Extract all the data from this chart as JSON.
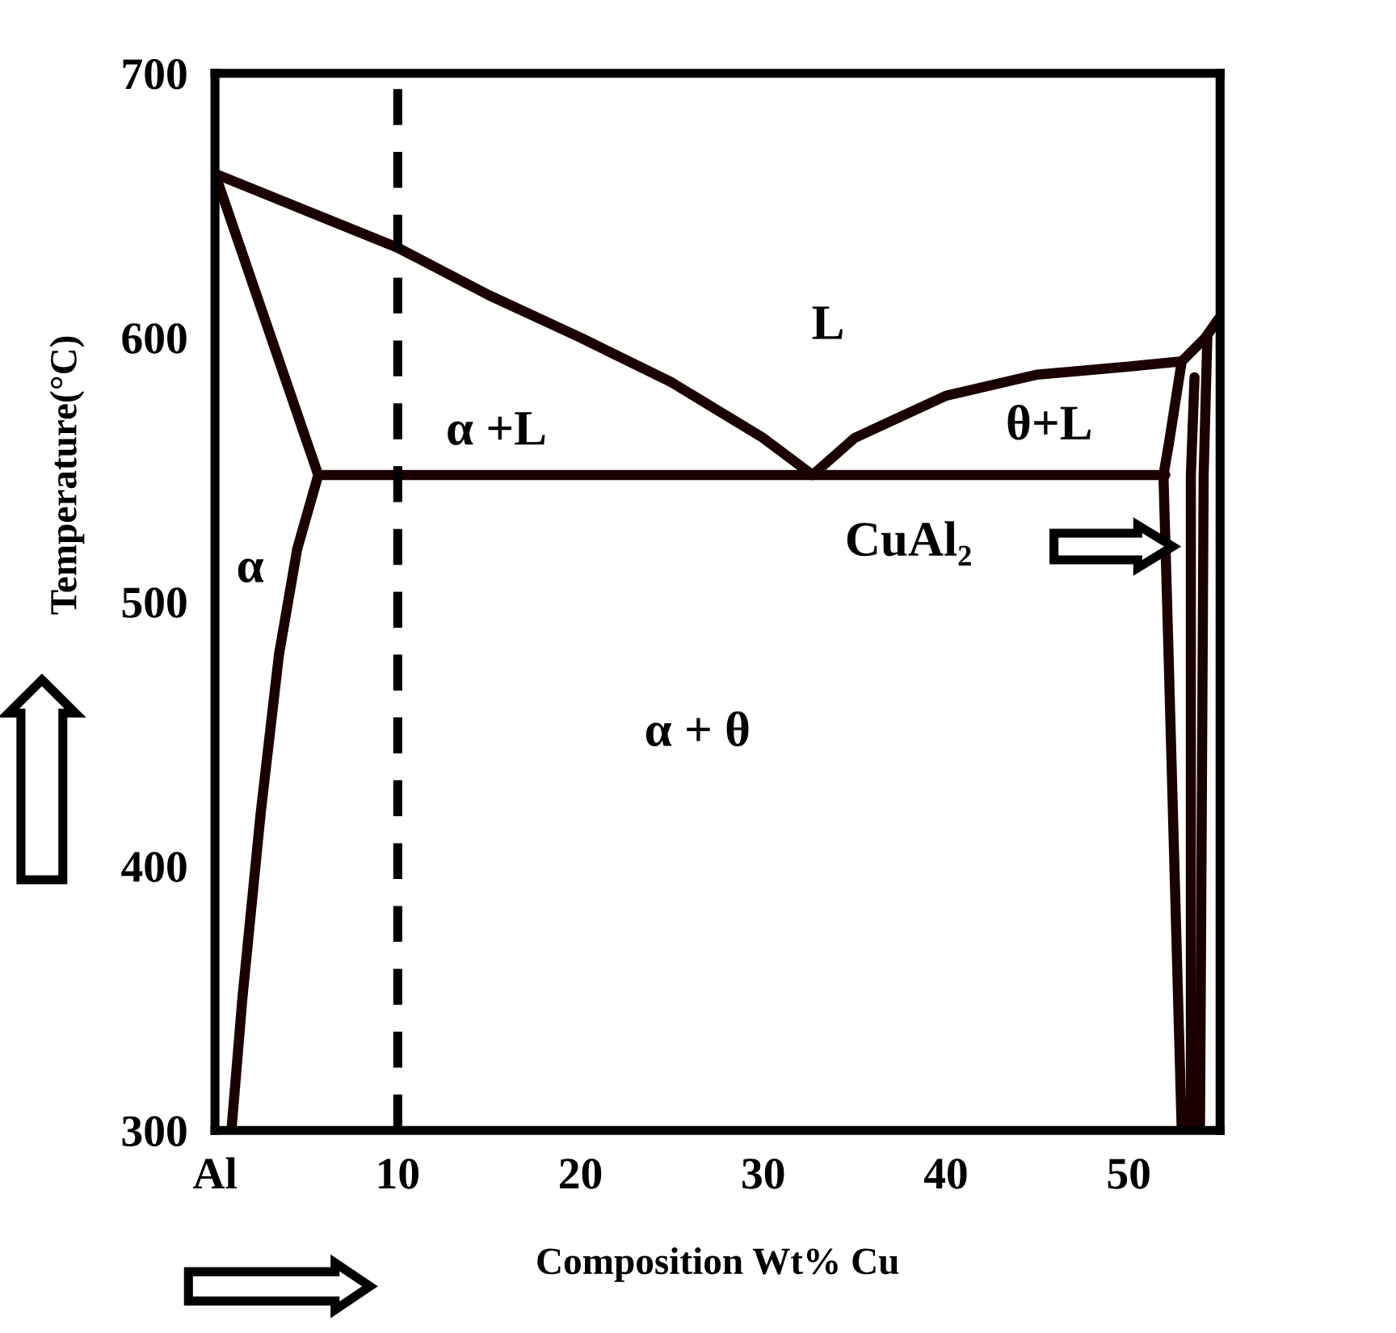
{
  "chart_data": {
    "type": "line",
    "xlabel": "Composition Wt% Cu",
    "ylabel": "Temperature(°C)",
    "xlim": [
      0,
      55
    ],
    "ylim": [
      300,
      700
    ],
    "xticks": [
      {
        "value": 0,
        "label": "Al"
      },
      10,
      20,
      30,
      40,
      50
    ],
    "yticks": [
      300,
      400,
      500,
      600,
      700
    ],
    "grid": false,
    "legend": false,
    "marker": "none",
    "line_style": "solid",
    "series": [
      {
        "color": "#1a0000",
        "x": [
          0,
          5,
          10,
          15,
          20,
          25,
          30,
          32.7
        ],
        "values": [
          662,
          648,
          634,
          616,
          600,
          583,
          562,
          548
        ]
      },
      {
        "color": "#1a0000",
        "x": [
          32.7,
          35,
          40,
          45,
          50,
          52.9,
          54.2,
          54.9
        ],
        "values": [
          548,
          562,
          578,
          586,
          589,
          591,
          600,
          607
        ]
      },
      {
        "color": "#1a0000",
        "x": [
          0,
          5.65
        ],
        "values": [
          662,
          548
        ]
      },
      {
        "color": "#1a0000",
        "x": [
          5.65,
          52
        ],
        "values": [
          548,
          548
        ]
      },
      {
        "color": "#1a0000",
        "x": [
          5.65,
          4.5,
          3.5,
          2.5,
          1.5,
          0.9
        ],
        "values": [
          548,
          520,
          480,
          420,
          350,
          300
        ]
      },
      {
        "color": "#1a0000",
        "x": [
          52.9,
          52.2,
          51.9,
          52.1,
          52.5,
          52.9
        ],
        "values": [
          591,
          560,
          548,
          500,
          400,
          300
        ]
      },
      {
        "color": "#1a0000",
        "x": [
          53.4,
          53.4,
          53.6
        ],
        "values": [
          300,
          548,
          585
        ]
      },
      {
        "color": "#1a0000",
        "x": [
          53.9,
          54.1,
          54.3
        ],
        "values": [
          300,
          548,
          600
        ]
      }
    ],
    "ref_lines": [
      {
        "axis": "x",
        "value": 10,
        "color": "#000000",
        "line_style": "dashed"
      }
    ],
    "annotations": [
      "L",
      "α +L",
      "θ+L",
      "α",
      "CuAl₂",
      "α + θ"
    ]
  }
}
